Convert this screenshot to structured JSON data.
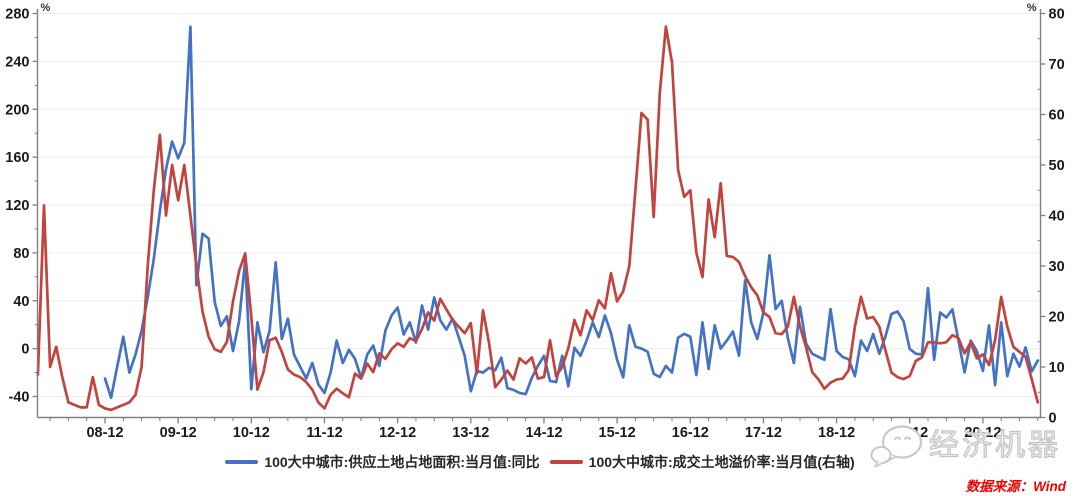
{
  "chart_data": {
    "type": "line",
    "title": "",
    "x_unit": "month",
    "x_start": "2008-01",
    "x_end": "2021-09",
    "x_tick_labels": [
      "08-12",
      "09-12",
      "10-12",
      "11-12",
      "12-12",
      "13-12",
      "14-12",
      "15-12",
      "16-12",
      "17-12",
      "18-12",
      "19-12",
      "20-12"
    ],
    "left_axis": {
      "unit": "%",
      "min": -40,
      "max": 280,
      "tick_step": 40,
      "ticks": [
        280,
        240,
        200,
        160,
        120,
        80,
        40,
        0,
        -40
      ]
    },
    "right_axis": {
      "unit": "%",
      "min": 0,
      "max": 80,
      "tick_step": 10,
      "ticks": [
        80,
        70,
        60,
        50,
        40,
        30,
        20,
        10,
        0
      ]
    },
    "grid": "horizontal",
    "legend_position": "bottom",
    "series": [
      {
        "name": "100大中城市:供应土地占地面积:当月值:同比",
        "axis": "left",
        "color": "#4472C4",
        "start_month": "2008-12",
        "start_index": 11,
        "values": [
          -25,
          -41,
          -15,
          10,
          -20,
          -5,
          15,
          43,
          75,
          115,
          150,
          173,
          159,
          172,
          269,
          53,
          96,
          92,
          39,
          19,
          27,
          -2,
          23,
          74,
          -34,
          22,
          -3,
          15,
          72,
          8,
          25,
          -5,
          -15,
          -25,
          -12,
          -30,
          -37,
          -20,
          6.7,
          -12,
          -1,
          -8.5,
          -24.5,
          -5,
          2.5,
          -14.4,
          15.1,
          27.6,
          34.4,
          11.8,
          21.9,
          5,
          36,
          15.9,
          42.8,
          23.6,
          15.9,
          25,
          10,
          -6,
          -35.6,
          -18.6,
          -20,
          -16,
          -18,
          -7.6,
          -33,
          -34.5,
          -37,
          -38,
          -24.5,
          -14.4,
          -6,
          -27,
          -28,
          -6,
          -31.5,
          0.8,
          -6,
          6.7,
          21.9,
          9.6,
          27.8,
          13,
          -9.3,
          -24,
          19.4,
          1.6,
          0,
          -2.6,
          -21,
          -23.7,
          -14.4,
          -20,
          9.2,
          12.3,
          10,
          -22,
          21.9,
          -16.9,
          19.4,
          0,
          6.7,
          14.3,
          -5.9,
          57,
          22,
          8,
          30,
          78,
          33,
          40,
          9,
          -12,
          35,
          4.2,
          -4.2,
          -6.8,
          -9.3,
          33,
          -2,
          -7,
          -9,
          -23,
          6.7,
          -2,
          12.3,
          -4.2,
          10,
          29,
          31,
          22.8,
          -0.2,
          -4.2,
          -5,
          50.6,
          -9.3,
          30.2,
          26,
          32.8,
          6.7,
          -19.9,
          6.7,
          -2,
          -18.6,
          19.4,
          -30.6,
          21.9,
          -23,
          -4.2,
          -15,
          1,
          -19,
          -10
        ]
      },
      {
        "name": "100大中城市:成交土地溢价率:当月值(右轴)",
        "axis": "right",
        "color": "#C2443C",
        "start_month": "2008-01",
        "start_index": 0,
        "values": [
          8.5,
          42,
          10,
          14,
          8,
          3,
          2.5,
          2,
          2,
          8,
          2.5,
          1.8,
          1.5,
          2,
          2.5,
          3,
          4.5,
          10,
          30,
          45,
          56,
          40,
          50,
          43,
          50,
          40,
          30,
          21,
          16,
          13.5,
          13,
          15,
          23,
          29,
          32.5,
          20,
          5.5,
          9,
          15.3,
          15.8,
          13,
          9.5,
          8.5,
          8,
          7,
          5.5,
          3,
          1.8,
          4.5,
          5.7,
          4.8,
          4,
          8.7,
          7.7,
          10.7,
          9,
          12.7,
          11.6,
          13.5,
          14.7,
          14,
          15.7,
          15.1,
          17.5,
          20.8,
          19.2,
          23.5,
          21.4,
          19.4,
          18,
          16.7,
          18.7,
          8.7,
          21.2,
          14.7,
          6,
          7.5,
          9.3,
          7.5,
          11.7,
          10.7,
          11.9,
          7.7,
          8,
          15.3,
          8.2,
          10,
          13.7,
          19.3,
          16.3,
          21.2,
          19.3,
          23.2,
          21.6,
          28.6,
          23,
          25,
          30,
          45,
          60.3,
          59,
          39.7,
          64.3,
          77.4,
          70.3,
          49,
          43.7,
          45,
          32.6,
          27.8,
          43.2,
          35.7,
          46.4,
          32,
          31.8,
          30.8,
          28,
          25.8,
          24.2,
          20.8,
          19.9,
          16.7,
          16.5,
          18,
          23.9,
          18,
          13.9,
          9,
          7.6,
          5.7,
          6.9,
          7.5,
          7.7,
          9.4,
          18,
          23.9,
          19.6,
          19.9,
          18,
          13.3,
          8.9,
          8,
          7.6,
          8.2,
          11.2,
          11.9,
          14.9,
          14.9,
          14.7,
          14.9,
          16.3,
          15.7,
          12.7,
          14.9,
          11.7,
          12.5,
          10.4,
          15.3,
          23.9,
          18,
          14,
          13,
          12,
          7.6,
          3
        ]
      }
    ]
  },
  "legend": {
    "blue_label": "100大中城市:供应土地占地面积:当月值:同比",
    "red_label": "100大中城市:成交土地溢价率:当月值(右轴)"
  },
  "watermark": {
    "text": "经济机器",
    "icon": "wechat-icon"
  },
  "footer": {
    "source": "数据来源：Wind"
  },
  "colors": {
    "blue": "#4472C4",
    "red": "#C2443C",
    "grid": "#EDEDED",
    "axis": "#808080",
    "label": "#1A1A1A",
    "source_red": "#F50000",
    "watermark_gray": "#C6C6C6"
  }
}
